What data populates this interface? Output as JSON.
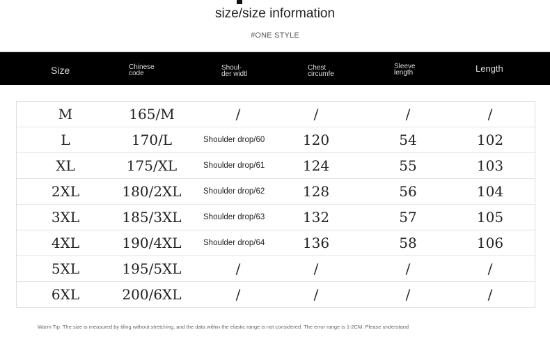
{
  "title": "size/size information",
  "subtitle": "#ONE STYLE",
  "header": {
    "columns": [
      "Size",
      "Chinese code",
      "Shoul- der widtl",
      "Chest circumfe",
      "Sleeve length",
      "Length"
    ],
    "lines": [
      [
        "Size"
      ],
      [
        "Chinese",
        "code"
      ],
      [
        "Shoul-",
        "der widtl"
      ],
      [
        "Chest",
        "circumfe"
      ],
      [
        "Sleeve",
        "length"
      ],
      [
        "Length"
      ]
    ]
  },
  "rows": [
    [
      "M",
      "165/M",
      "/",
      "/",
      "/",
      "/"
    ],
    [
      "L",
      "170/L",
      "Shoulder drop/60",
      "120",
      "54",
      "102"
    ],
    [
      "XL",
      "175/XL",
      "Shoulder drop/61",
      "124",
      "55",
      "103"
    ],
    [
      "2XL",
      "180/2XL",
      "Shoulder drop/62",
      "128",
      "56",
      "104"
    ],
    [
      "3XL",
      "185/3XL",
      "Shoulder drop/63",
      "132",
      "57",
      "105"
    ],
    [
      "4XL",
      "190/4XL",
      "Shoulder drop/64",
      "136",
      "58",
      "106"
    ],
    [
      "5XL",
      "195/5XL",
      "/",
      "/",
      "/",
      "/"
    ],
    [
      "6XL",
      "200/6XL",
      "/",
      "/",
      "/",
      "/"
    ]
  ],
  "tip": "Warm Tip: The size is measured by tiling without stretching, and the data within the elastic range is not considered. The error range is 1-2CM. Please understand"
}
